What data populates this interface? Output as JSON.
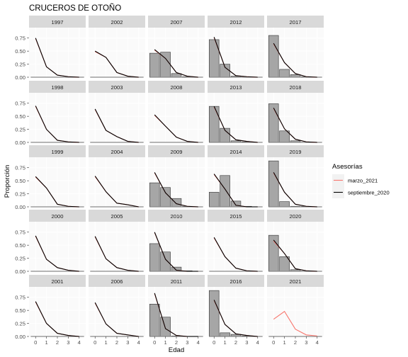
{
  "chart_data": {
    "type": "bar",
    "title": "CRUCEROS DE OTOÑO",
    "xlabel": "Edad",
    "ylabel": "Proporción",
    "ylim": [
      0,
      0.95
    ],
    "x_ticks": [
      "0",
      "1",
      "2",
      "3",
      "4"
    ],
    "y_ticks": [
      "0.00",
      "0.25",
      "0.50",
      "0.75"
    ],
    "legend": {
      "title": "Asesorías",
      "position": "right",
      "items": [
        {
          "label": "marzo_2021",
          "color": "#F8766D"
        },
        {
          "label": "septiembre_2020",
          "color": "#000000"
        }
      ]
    },
    "colors": {
      "panel_bg": "#fafafa",
      "strip_bg": "#d9d9d9",
      "grid": "#ffffff",
      "bar_fill": "#a6a6a6",
      "bar_stroke": "#333333",
      "observed_line": "#8a8a8a",
      "marzo_2021": "#F8766D",
      "septiembre_2020": "#000000"
    },
    "panels": [
      {
        "year": "1997",
        "bars": null,
        "septiembre_2020": [
          0.75,
          0.2,
          0.04,
          0.01,
          0.0
        ],
        "marzo_2021": [
          0.74,
          0.2,
          0.04,
          0.01,
          0.0
        ]
      },
      {
        "year": "2002",
        "bars": null,
        "septiembre_2020": [
          0.5,
          0.38,
          0.09,
          0.02,
          0.0
        ],
        "marzo_2021": [
          0.49,
          0.38,
          0.09,
          0.02,
          0.0
        ]
      },
      {
        "year": "2007",
        "bars": [
          0.46,
          0.48,
          0.07,
          0.01,
          0.0
        ],
        "septiembre_2020": [
          0.53,
          0.36,
          0.09,
          0.02,
          0.0
        ],
        "marzo_2021": [
          0.52,
          0.36,
          0.09,
          0.02,
          0.0
        ]
      },
      {
        "year": "2012",
        "bars": [
          0.72,
          0.25,
          0.02,
          0.0,
          0.0
        ],
        "septiembre_2020": [
          0.77,
          0.19,
          0.03,
          0.01,
          0.0
        ],
        "marzo_2021": [
          0.76,
          0.19,
          0.03,
          0.01,
          0.0
        ]
      },
      {
        "year": "2017",
        "bars": [
          0.8,
          0.15,
          0.05,
          0.01,
          0.0
        ],
        "septiembre_2020": [
          0.65,
          0.28,
          0.07,
          0.01,
          0.0
        ],
        "marzo_2021": [
          0.64,
          0.28,
          0.07,
          0.01,
          0.0
        ]
      },
      {
        "year": "1998",
        "bars": null,
        "septiembre_2020": [
          0.7,
          0.25,
          0.04,
          0.01,
          0.0
        ],
        "marzo_2021": [
          0.69,
          0.25,
          0.04,
          0.01,
          0.0
        ]
      },
      {
        "year": "2003",
        "bars": null,
        "septiembre_2020": [
          0.64,
          0.23,
          0.11,
          0.02,
          0.0
        ],
        "marzo_2021": [
          0.63,
          0.23,
          0.11,
          0.02,
          0.0
        ]
      },
      {
        "year": "2008",
        "bars": null,
        "septiembre_2020": [
          0.53,
          0.31,
          0.1,
          0.02,
          0.0
        ],
        "marzo_2021": [
          0.52,
          0.31,
          0.1,
          0.02,
          0.0
        ]
      },
      {
        "year": "2013",
        "bars": [
          0.69,
          0.27,
          0.03,
          0.01,
          0.0
        ],
        "septiembre_2020": [
          0.69,
          0.23,
          0.05,
          0.02,
          0.0
        ],
        "marzo_2021": [
          0.68,
          0.23,
          0.05,
          0.02,
          0.0
        ]
      },
      {
        "year": "2018",
        "bars": [
          0.74,
          0.22,
          0.03,
          0.0,
          0.0
        ],
        "septiembre_2020": [
          0.66,
          0.26,
          0.06,
          0.01,
          0.0
        ],
        "marzo_2021": [
          0.65,
          0.26,
          0.06,
          0.01,
          0.0
        ]
      },
      {
        "year": "1999",
        "bars": null,
        "septiembre_2020": [
          0.58,
          0.36,
          0.05,
          0.01,
          0.0
        ],
        "marzo_2021": [
          0.57,
          0.36,
          0.05,
          0.01,
          0.0
        ]
      },
      {
        "year": "2004",
        "bars": null,
        "septiembre_2020": [
          0.59,
          0.29,
          0.07,
          0.04,
          0.0
        ],
        "marzo_2021": [
          0.58,
          0.29,
          0.07,
          0.04,
          0.0
        ]
      },
      {
        "year": "2009",
        "bars": [
          0.46,
          0.37,
          0.16,
          0.01,
          0.0
        ],
        "septiembre_2020": [
          0.66,
          0.27,
          0.06,
          0.01,
          0.0
        ],
        "marzo_2021": [
          0.65,
          0.27,
          0.06,
          0.01,
          0.0
        ]
      },
      {
        "year": "2014",
        "bars": [
          0.28,
          0.6,
          0.11,
          0.01,
          0.0
        ],
        "septiembre_2020": [
          0.63,
          0.34,
          0.03,
          0.0,
          0.0
        ],
        "marzo_2021": [
          0.62,
          0.34,
          0.03,
          0.0,
          0.0
        ]
      },
      {
        "year": "2019",
        "bars": [
          0.88,
          0.1,
          0.01,
          0.01,
          0.0
        ],
        "septiembre_2020": [
          0.66,
          0.28,
          0.05,
          0.01,
          0.0
        ],
        "marzo_2021": [
          0.65,
          0.28,
          0.05,
          0.01,
          0.0
        ]
      },
      {
        "year": "2000",
        "bars": null,
        "septiembre_2020": [
          0.68,
          0.23,
          0.07,
          0.02,
          0.0
        ],
        "marzo_2021": [
          0.67,
          0.23,
          0.07,
          0.02,
          0.0
        ]
      },
      {
        "year": "2005",
        "bars": null,
        "septiembre_2020": [
          0.67,
          0.24,
          0.07,
          0.02,
          0.0
        ],
        "marzo_2021": [
          0.66,
          0.24,
          0.07,
          0.02,
          0.0
        ]
      },
      {
        "year": "2010",
        "bars": [
          0.53,
          0.37,
          0.08,
          0.01,
          0.0
        ],
        "septiembre_2020": [
          0.75,
          0.23,
          0.02,
          0.0,
          0.0
        ],
        "marzo_2021": [
          0.74,
          0.23,
          0.02,
          0.0,
          0.0
        ]
      },
      {
        "year": "2015",
        "bars": null,
        "septiembre_2020": [
          0.65,
          0.28,
          0.06,
          0.01,
          0.0
        ],
        "marzo_2021": [
          0.64,
          0.28,
          0.06,
          0.01,
          0.0
        ]
      },
      {
        "year": "2020",
        "bars": [
          0.69,
          0.28,
          0.03,
          0.0,
          0.0
        ],
        "septiembre_2020": [
          0.6,
          0.34,
          0.05,
          0.01,
          0.0
        ],
        "marzo_2021": [
          0.58,
          0.34,
          0.05,
          0.01,
          0.0
        ]
      },
      {
        "year": "2001",
        "bars": null,
        "septiembre_2020": [
          0.67,
          0.25,
          0.06,
          0.02,
          0.0
        ],
        "marzo_2021": [
          0.66,
          0.25,
          0.06,
          0.02,
          0.0
        ]
      },
      {
        "year": "2006",
        "bars": null,
        "septiembre_2020": [
          0.65,
          0.24,
          0.06,
          0.03,
          0.0
        ],
        "marzo_2021": [
          0.64,
          0.24,
          0.06,
          0.03,
          0.0
        ]
      },
      {
        "year": "2011",
        "bars": [
          0.62,
          0.37,
          0.01,
          0.0,
          0.0
        ],
        "septiembre_2020": [
          0.83,
          0.15,
          0.02,
          0.0,
          0.0
        ],
        "marzo_2021": [
          0.82,
          0.15,
          0.02,
          0.0,
          0.0
        ]
      },
      {
        "year": "2016",
        "bars": [
          0.88,
          0.07,
          0.04,
          0.01,
          0.0
        ],
        "septiembre_2020": [
          0.7,
          0.23,
          0.05,
          0.02,
          0.0
        ],
        "marzo_2021": [
          0.69,
          0.23,
          0.05,
          0.02,
          0.0
        ]
      },
      {
        "year": "2021",
        "bars": null,
        "septiembre_2020": null,
        "marzo_2021": [
          0.33,
          0.48,
          0.14,
          0.03,
          0.01
        ]
      }
    ]
  }
}
